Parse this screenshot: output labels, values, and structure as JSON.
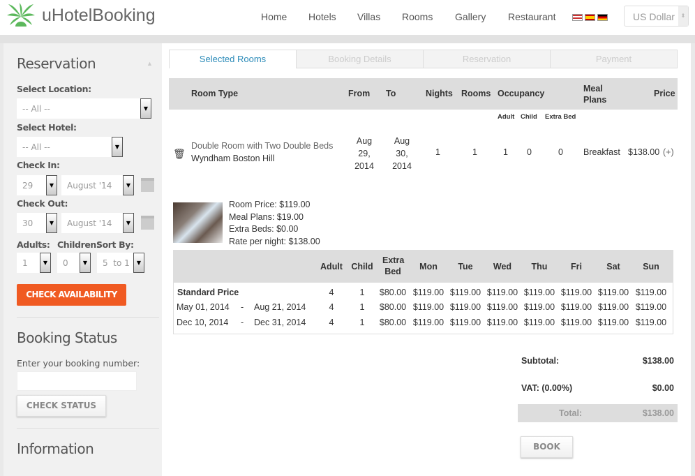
{
  "header": {
    "brand": "uHotelBooking",
    "nav": [
      "Home",
      "Hotels",
      "Villas",
      "Rooms",
      "Gallery",
      "Restaurant"
    ],
    "languages": [
      "English",
      "Spanish",
      "German"
    ],
    "currency": "US Dollar"
  },
  "sidebar": {
    "reservation_title": "Reservation",
    "location_label": "Select Location:",
    "location_value": "-- All --",
    "hotel_label": "Select Hotel:",
    "hotel_value": "-- All --",
    "checkin_label": "Check In:",
    "checkin_day": "29",
    "checkin_month": "August '14",
    "checkout_label": "Check Out:",
    "checkout_day": "30",
    "checkout_month": "August '14",
    "adults_label": "Adults:",
    "children_label": "Children:",
    "sort_label": "Sort By:",
    "adults_value": "1",
    "children_value": "0",
    "sort_value": "5  to 1",
    "check_availability": "CHECK AVAILABILITY",
    "booking_status_title": "Booking Status",
    "booking_number_label": "Enter your booking number:",
    "booking_number_value": "",
    "check_status": "CHECK STATUS",
    "information_title": "Information"
  },
  "tabs": [
    "Selected Rooms",
    "Booking Details",
    "Reservation",
    "Payment"
  ],
  "rooms_table": {
    "headers": {
      "room_type": "Room Type",
      "from": "From",
      "to": "To",
      "nights": "Nights",
      "rooms": "Rooms",
      "occupancy": "Occupancy",
      "meal_plans": "Meal Plans",
      "price": "Price"
    },
    "subheaders": {
      "adult": "Adult",
      "child": "Child",
      "extra_bed": "Extra Bed"
    },
    "row": {
      "room": "Double Room with Two Double Beds",
      "hotel": "Wyndham Boston Hill",
      "from": "Aug 29, 2014",
      "to": "Aug 30, 2014",
      "nights": "1",
      "rooms": "1",
      "adult": "1",
      "child": "0",
      "extra_bed": "0",
      "meal": "Breakfast",
      "price": "$138.00",
      "more": "(+)"
    }
  },
  "price_breakdown": [
    "Room Price: $119.00",
    "Meal Plans: $19.00",
    "Extra Beds: $0.00",
    "Rate per night: $138.00"
  ],
  "price_table": {
    "headers": [
      "Adult",
      "Child",
      "Extra Bed",
      "Mon",
      "Tue",
      "Wed",
      "Thu",
      "Fri",
      "Sat",
      "Sun"
    ],
    "rows": [
      {
        "label": "Standard Price",
        "from": "",
        "to": "",
        "values": [
          "4",
          "1",
          "$80.00",
          "$119.00",
          "$119.00",
          "$119.00",
          "$119.00",
          "$119.00",
          "$119.00",
          "$119.00"
        ]
      },
      {
        "label": "",
        "from": "May 01, 2014",
        "to": "Aug 21, 2014",
        "values": [
          "4",
          "1",
          "$80.00",
          "$119.00",
          "$119.00",
          "$119.00",
          "$119.00",
          "$119.00",
          "$119.00",
          "$119.00"
        ]
      },
      {
        "label": "",
        "from": "Dec 10, 2014",
        "to": "Dec 31, 2014",
        "values": [
          "4",
          "1",
          "$80.00",
          "$119.00",
          "$119.00",
          "$119.00",
          "$119.00",
          "$119.00",
          "$119.00",
          "$119.00"
        ]
      }
    ]
  },
  "totals": {
    "subtotal_label": "Subtotal:",
    "subtotal": "$138.00",
    "vat_label": "VAT: (0.00%)",
    "vat": "$0.00",
    "total_label": "Total:",
    "total": "$138.00",
    "book": "BOOK"
  },
  "colors": {
    "accent": "#f05a22",
    "tab_active": "#2a8ab8",
    "logo": "#5cb85c"
  }
}
